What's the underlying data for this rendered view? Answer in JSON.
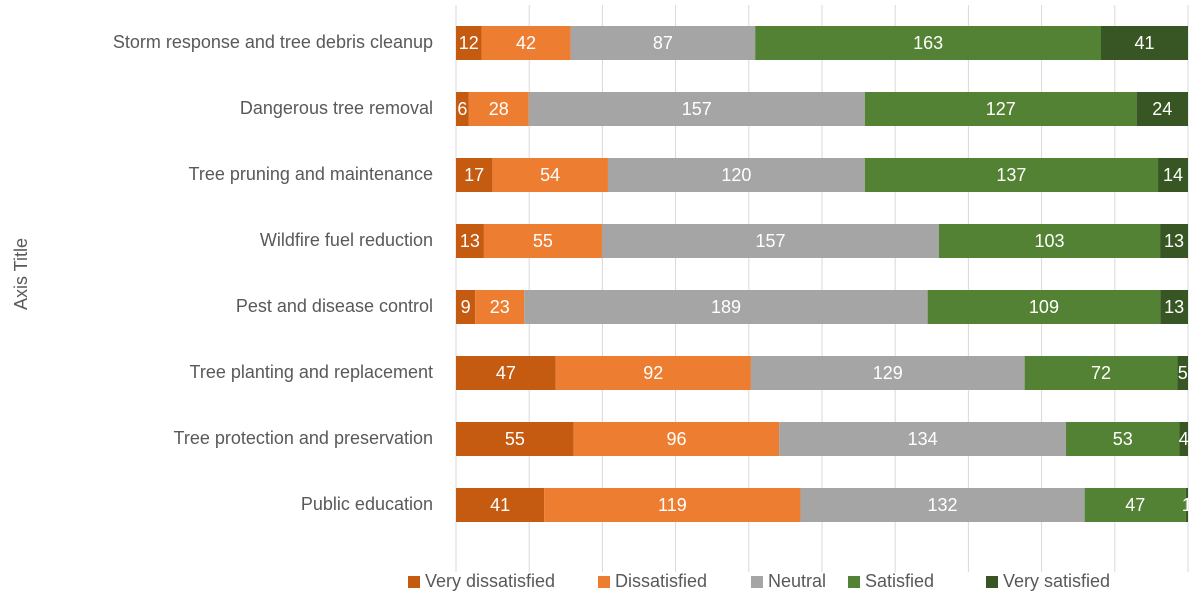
{
  "chart_data": {
    "type": "bar",
    "orientation": "horizontal",
    "stacked": "percent",
    "y_label": "Axis Title",
    "categories": [
      "Storm response and tree debris cleanup",
      "Dangerous tree removal",
      "Tree pruning and maintenance",
      "Wildfire fuel reduction",
      "Pest and disease control",
      "Tree planting and replacement",
      "Tree protection and preservation",
      "Public education"
    ],
    "series": [
      {
        "name": "Very dissatisfied",
        "color": "#c55a11",
        "values": [
          12,
          6,
          17,
          13,
          9,
          47,
          55,
          41
        ]
      },
      {
        "name": "Dissatisfied",
        "color": "#ed7d31",
        "values": [
          42,
          28,
          54,
          55,
          23,
          92,
          96,
          119
        ]
      },
      {
        "name": "Neutral",
        "color": "#a5a5a5",
        "values": [
          87,
          157,
          120,
          157,
          189,
          129,
          134,
          132
        ]
      },
      {
        "name": "Satisfied",
        "color": "#548235",
        "values": [
          163,
          127,
          137,
          103,
          109,
          72,
          53,
          47
        ]
      },
      {
        "name": "Very satisfied",
        "color": "#375623",
        "values": [
          41,
          24,
          14,
          13,
          13,
          5,
          4,
          1
        ]
      }
    ],
    "xlim": [
      0,
      100
    ],
    "xticks": [
      0,
      10,
      20,
      30,
      40,
      50,
      60,
      70,
      80,
      90,
      100
    ],
    "grid": true,
    "legend": "bottom"
  }
}
